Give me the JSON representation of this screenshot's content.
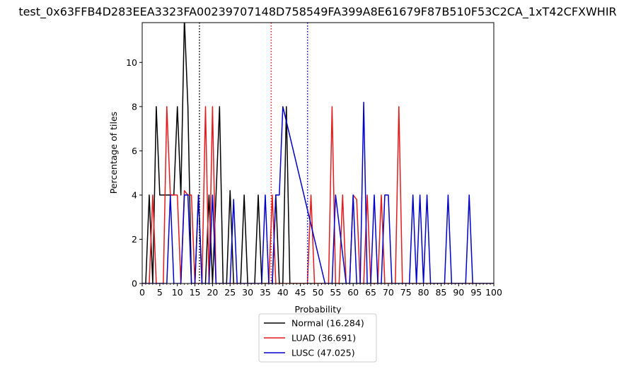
{
  "chart_data": {
    "type": "line",
    "title": "test_0x63FFB4D283EEA3323FA00239707148D758549FA399A8E61679F87B510F53C2CA_1xT42CFXWHIR",
    "xlabel": "Probability",
    "ylabel": "Percentage of tiles",
    "xlim": [
      0,
      100
    ],
    "ylim": [
      0,
      11.8
    ],
    "x_ticks": [
      0,
      5,
      10,
      15,
      20,
      25,
      30,
      35,
      40,
      45,
      50,
      55,
      60,
      65,
      70,
      75,
      80,
      85,
      90,
      95,
      100
    ],
    "x_tick_labels": [
      "0",
      "5",
      "10",
      "15",
      "20",
      "25",
      "30",
      "35",
      "40",
      "45",
      "50",
      "55",
      "60",
      "65",
      "70",
      "75",
      "80",
      "85",
      "90",
      "95",
      "100"
    ],
    "x_minor_ticks": [
      1,
      2,
      3,
      4,
      6,
      7,
      8,
      9,
      11,
      12,
      13,
      14,
      16,
      17,
      18,
      19,
      21,
      22,
      23,
      24,
      26,
      27,
      28,
      29,
      31,
      32,
      33,
      34,
      36,
      37,
      38,
      39,
      41,
      42,
      43,
      44,
      46,
      47,
      48,
      49,
      51,
      52,
      53,
      54,
      56,
      57,
      58,
      59,
      61,
      62,
      63,
      64,
      66,
      67,
      68,
      69,
      71,
      72,
      73,
      74,
      76,
      77,
      78,
      79,
      81,
      82,
      83,
      84,
      86,
      87,
      88,
      89,
      91,
      92,
      93,
      94,
      96,
      97,
      98,
      99
    ],
    "y_ticks": [
      0,
      2,
      4,
      6,
      8,
      10
    ],
    "y_tick_labels": [
      "0",
      "2",
      "4",
      "6",
      "8",
      "10"
    ],
    "grid": false,
    "legend_position": "below-center",
    "series": [
      {
        "name": "Normal (16.284)",
        "color": "#000000",
        "x": [
          0,
          1,
          2,
          3,
          4,
          5,
          6,
          7,
          8,
          9,
          10,
          11,
          12,
          13,
          14,
          15,
          16,
          17,
          18,
          19,
          20,
          21,
          22,
          23,
          24,
          25,
          26,
          27,
          28,
          29,
          30,
          31,
          32,
          33,
          34,
          35,
          36,
          37,
          38,
          39,
          40,
          41,
          42,
          100
        ],
        "values": [
          0,
          0,
          4,
          0,
          8,
          4,
          4,
          4,
          4,
          4,
          8,
          4,
          12,
          8,
          0,
          0,
          4,
          0,
          0,
          4,
          0,
          4,
          8,
          0,
          0,
          4.2,
          0,
          0,
          0,
          4,
          0,
          0,
          0,
          4,
          0,
          0,
          0,
          0,
          4,
          0,
          0,
          8,
          0,
          0
        ]
      },
      {
        "name": "LUAD (36.691)",
        "color": "#e41a1c",
        "x": [
          0,
          1,
          2,
          3,
          4,
          5,
          6,
          7,
          8,
          9,
          10,
          11,
          12,
          13,
          14,
          15,
          16,
          17,
          18,
          19,
          20,
          21,
          22,
          23,
          36,
          37,
          38,
          46,
          47,
          48,
          49,
          53,
          54,
          55,
          56,
          57,
          58,
          59,
          60,
          61,
          62,
          63,
          64,
          65,
          66,
          67,
          68,
          69,
          70,
          71,
          72,
          73,
          74,
          75,
          100
        ],
        "values": [
          0,
          0,
          0,
          4,
          0,
          0,
          0,
          8,
          4,
          4,
          4,
          0,
          4.2,
          4,
          4,
          0,
          0,
          0,
          8,
          0,
          8,
          0,
          0,
          0,
          0,
          4,
          0,
          0,
          0,
          4,
          0,
          0,
          8,
          0,
          0,
          4,
          0,
          0,
          4,
          3.8,
          0,
          0,
          4,
          0,
          0,
          0,
          4,
          0,
          0,
          0,
          0,
          8,
          0,
          0,
          0
        ]
      },
      {
        "name": "LUSC (47.025)",
        "color": "#0000cc",
        "x": [
          0,
          7,
          8,
          9,
          10,
          11,
          12,
          13,
          14,
          15,
          16,
          17,
          18,
          19,
          20,
          21,
          22,
          23,
          24,
          25,
          26,
          27,
          33,
          34,
          35,
          36,
          37,
          38,
          39,
          40,
          52,
          53,
          54,
          55,
          58,
          59,
          60,
          61,
          62,
          63,
          64,
          65,
          66,
          67,
          68,
          69,
          70,
          71,
          75,
          76,
          77,
          78,
          79,
          80,
          81,
          82,
          85,
          86,
          87,
          88,
          91,
          92,
          93,
          94,
          100
        ],
        "values": [
          0,
          0,
          4,
          0,
          0,
          0,
          4,
          4,
          0,
          0,
          4,
          0,
          0,
          0,
          4,
          0,
          0,
          0,
          0,
          0,
          3.8,
          0,
          0,
          0,
          4,
          0,
          0,
          4,
          4,
          8,
          0,
          0,
          0,
          4,
          0,
          0,
          4,
          0,
          0,
          8.2,
          0,
          0,
          4,
          0,
          0,
          4,
          4,
          0,
          0,
          0,
          4,
          0,
          4,
          0,
          4,
          0,
          0,
          0,
          4,
          0,
          0,
          0,
          4,
          0,
          0
        ]
      }
    ],
    "vlines": [
      {
        "x": 16.284,
        "color": "#000000",
        "style": "dotted"
      },
      {
        "x": 36.691,
        "color": "#e41a1c",
        "style": "dotted"
      },
      {
        "x": 47.025,
        "color": "#0000cc",
        "style": "dotted"
      }
    ]
  }
}
